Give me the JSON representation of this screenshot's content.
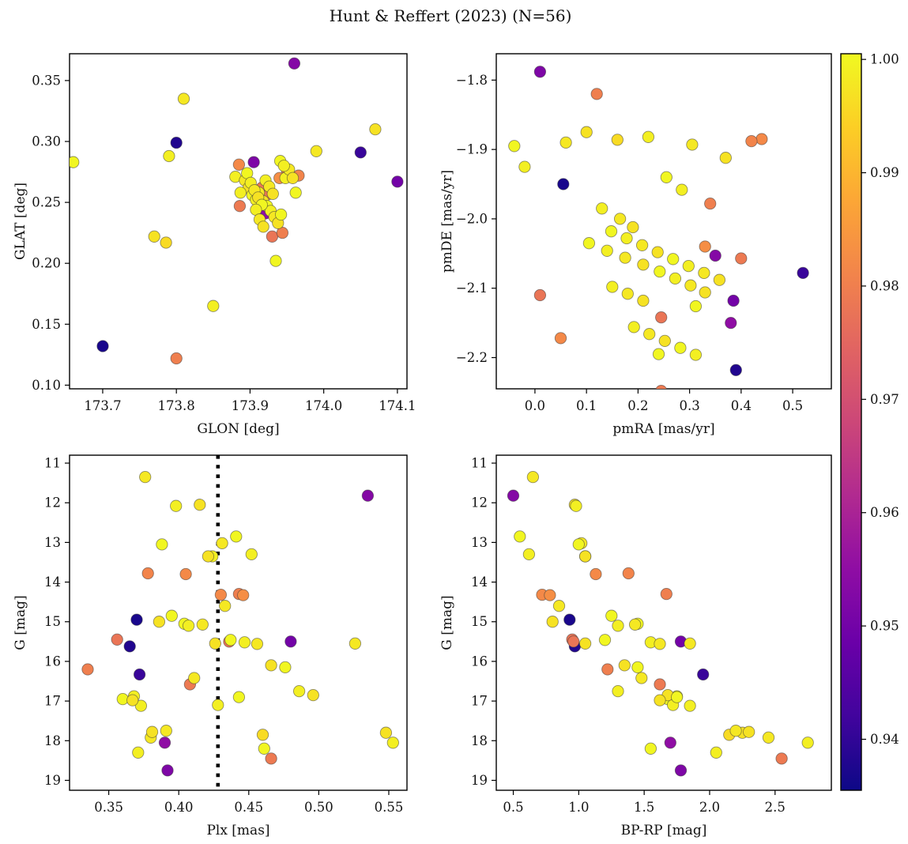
{
  "title": "Hunt & Reffert (2023) (N=56)",
  "chart_data": {
    "type": "scatter",
    "title": "Hunt & Reffert (2023) (N=56)",
    "n_points": 56,
    "colormap": "plasma",
    "colormap_stops": [
      "#0d0887",
      "#41049d",
      "#6a00a8",
      "#8f0da4",
      "#b12a90",
      "#cc4778",
      "#e16462",
      "#f2844b",
      "#fca636",
      "#fcce25",
      "#f0f921"
    ],
    "colorbar": {
      "vmin": 0.9355,
      "vmax": 1.0005,
      "tick_values": [
        1.0,
        0.99,
        0.98,
        0.97,
        0.96,
        0.95,
        0.94
      ],
      "tick_labels": [
        "1.00",
        "0.99",
        "0.98",
        "0.97",
        "0.96",
        "0.95",
        "0.94"
      ]
    },
    "columns": [
      "glon",
      "glat",
      "pmra",
      "pmde",
      "plx",
      "g",
      "bprp",
      "membership_prob"
    ],
    "stars": [
      [
        173.7,
        0.132,
        0.055,
        -1.95,
        0.37,
        14.95,
        0.93,
        0.937
      ],
      [
        173.8,
        0.299,
        0.39,
        -2.218,
        0.365,
        15.62,
        0.97,
        0.938
      ],
      [
        174.05,
        0.291,
        0.52,
        -2.078,
        0.372,
        16.33,
        1.95,
        0.941
      ],
      [
        173.96,
        0.364,
        0.35,
        -2.053,
        0.535,
        11.82,
        0.5,
        0.953
      ],
      [
        174.1,
        0.267,
        0.385,
        -2.118,
        0.48,
        15.5,
        1.78,
        0.95
      ],
      [
        173.921,
        0.241,
        0.38,
        -2.15,
        0.39,
        18.05,
        1.7,
        0.955
      ],
      [
        173.905,
        0.283,
        0.01,
        -1.788,
        0.392,
        18.75,
        1.78,
        0.952
      ],
      [
        173.8,
        0.122,
        0.12,
        -1.82,
        0.335,
        16.2,
        1.22,
        0.98
      ],
      [
        173.95,
        0.277,
        0.44,
        -1.885,
        0.405,
        13.8,
        1.13,
        0.982
      ],
      [
        173.966,
        0.272,
        0.42,
        -1.888,
        0.378,
        13.78,
        1.38,
        0.981
      ],
      [
        173.93,
        0.222,
        0.01,
        -2.11,
        0.356,
        15.45,
        0.95,
        0.978
      ],
      [
        173.885,
        0.281,
        0.05,
        -2.172,
        0.43,
        14.32,
        0.72,
        0.982
      ],
      [
        173.944,
        0.225,
        0.34,
        -1.978,
        0.443,
        14.3,
        1.67,
        0.98
      ],
      [
        173.886,
        0.247,
        0.4,
        -2.057,
        0.466,
        18.45,
        2.55,
        0.979
      ],
      [
        173.916,
        0.262,
        0.245,
        -2.248,
        0.408,
        16.58,
        1.62,
        0.979
      ],
      [
        173.926,
        0.257,
        0.245,
        -2.142,
        0.436,
        15.5,
        0.96,
        0.978
      ],
      [
        173.94,
        0.27,
        0.33,
        -2.04,
        0.446,
        14.33,
        0.78,
        0.983
      ],
      [
        173.66,
        0.283,
        -0.04,
        -1.895,
        0.36,
        16.95,
        1.68,
        1.0
      ],
      [
        173.79,
        0.288,
        -0.02,
        -1.925,
        0.368,
        16.88,
        1.75,
        0.999
      ],
      [
        173.81,
        0.335,
        0.06,
        -1.89,
        0.376,
        11.35,
        0.65,
        0.998
      ],
      [
        173.77,
        0.222,
        0.1,
        -1.875,
        0.548,
        17.8,
        2.25,
        0.997
      ],
      [
        173.786,
        0.217,
        0.16,
        -1.886,
        0.46,
        17.85,
        2.15,
        0.996
      ],
      [
        173.85,
        0.165,
        0.22,
        -1.882,
        0.428,
        17.1,
        1.72,
        0.999
      ],
      [
        173.99,
        0.292,
        0.305,
        -1.893,
        0.38,
        17.92,
        2.45,
        0.998
      ],
      [
        174.07,
        0.31,
        0.37,
        -1.912,
        0.415,
        12.05,
        0.97,
        0.997
      ],
      [
        173.935,
        0.202,
        0.24,
        -2.195,
        0.404,
        15.05,
        1.45,
        1.0
      ],
      [
        173.88,
        0.271,
        0.13,
        -1.985,
        0.424,
        13.35,
        1.05,
        0.999
      ],
      [
        173.893,
        0.268,
        0.165,
        -2.0,
        0.433,
        14.6,
        0.85,
        0.998
      ],
      [
        173.898,
        0.262,
        0.19,
        -2.012,
        0.386,
        15.0,
        0.8,
        0.997
      ],
      [
        173.903,
        0.256,
        0.105,
        -2.035,
        0.395,
        14.85,
        1.25,
        1.0
      ],
      [
        173.908,
        0.252,
        0.14,
        -2.046,
        0.407,
        15.1,
        1.3,
        0.999
      ],
      [
        173.912,
        0.258,
        0.175,
        -2.056,
        0.417,
        15.07,
        1.43,
        0.998
      ],
      [
        173.918,
        0.251,
        0.21,
        -2.066,
        0.426,
        15.55,
        1.05,
        0.997
      ],
      [
        173.923,
        0.247,
        0.242,
        -2.076,
        0.437,
        15.46,
        1.2,
        1.0
      ],
      [
        173.928,
        0.243,
        0.272,
        -2.086,
        0.447,
        15.52,
        1.55,
        0.999
      ],
      [
        173.933,
        0.238,
        0.302,
        -2.096,
        0.456,
        15.56,
        1.62,
        0.998
      ],
      [
        173.938,
        0.233,
        0.33,
        -2.106,
        0.466,
        16.1,
        1.35,
        0.997
      ],
      [
        173.942,
        0.24,
        0.312,
        -2.126,
        0.476,
        16.15,
        1.45,
        1.0
      ],
      [
        173.948,
        0.27,
        0.192,
        -2.156,
        0.486,
        16.75,
        1.3,
        0.999
      ],
      [
        173.953,
        0.277,
        0.222,
        -2.166,
        0.526,
        15.55,
        1.85,
        0.998
      ],
      [
        173.958,
        0.27,
        0.252,
        -2.176,
        0.496,
        16.85,
        1.68,
        0.997
      ],
      [
        173.962,
        0.258,
        0.282,
        -2.186,
        0.443,
        16.9,
        1.75,
        1.0
      ],
      [
        173.887,
        0.258,
        0.312,
        -2.196,
        0.373,
        17.12,
        1.85,
        0.999
      ],
      [
        173.896,
        0.274,
        0.148,
        -2.018,
        0.441,
        12.85,
        0.55,
        1.0
      ],
      [
        173.901,
        0.266,
        0.178,
        -2.028,
        0.452,
        13.3,
        0.62,
        0.999
      ],
      [
        173.906,
        0.26,
        0.208,
        -2.038,
        0.431,
        13.02,
        1.02,
        0.998
      ],
      [
        173.911,
        0.254,
        0.238,
        -2.048,
        0.421,
        13.35,
        1.05,
        0.997
      ],
      [
        173.916,
        0.248,
        0.268,
        -2.058,
        0.461,
        18.2,
        1.55,
        1.0
      ],
      [
        173.921,
        0.268,
        0.298,
        -2.068,
        0.553,
        18.05,
        2.75,
        0.999
      ],
      [
        173.926,
        0.263,
        0.328,
        -2.078,
        0.391,
        17.75,
        2.2,
        0.998
      ],
      [
        173.931,
        0.257,
        0.358,
        -2.088,
        0.381,
        17.78,
        2.3,
        0.997
      ],
      [
        173.908,
        0.244,
        0.15,
        -2.098,
        0.371,
        18.3,
        2.05,
        0.999
      ],
      [
        173.913,
        0.236,
        0.18,
        -2.108,
        0.411,
        16.42,
        1.48,
        0.998
      ],
      [
        173.918,
        0.23,
        0.21,
        -2.118,
        0.367,
        16.98,
        1.62,
        0.997
      ],
      [
        173.941,
        0.284,
        0.255,
        -1.94,
        0.388,
        13.05,
        1.0,
        1.0
      ],
      [
        173.946,
        0.28,
        0.285,
        -1.958,
        0.398,
        12.08,
        0.98,
        0.999
      ]
    ],
    "panels": [
      {
        "id": "glon-glat",
        "xlabel": "GLON [deg]",
        "ylabel": "GLAT [deg]",
        "xi": 0,
        "yi": 1,
        "xlim": [
          173.655,
          174.113
        ],
        "ylim": [
          0.097,
          0.372
        ],
        "invert_y": false,
        "xticks": [
          173.7,
          173.8,
          173.9,
          174.0,
          174.1
        ],
        "xtick_labels": [
          "173.7",
          "173.8",
          "173.9",
          "174.0",
          "174.1"
        ],
        "yticks": [
          0.1,
          0.15,
          0.2,
          0.25,
          0.3,
          0.35
        ],
        "ytick_labels": [
          "0.10",
          "0.15",
          "0.20",
          "0.25",
          "0.30",
          "0.35"
        ]
      },
      {
        "id": "pmra-pmde",
        "xlabel": "pmRA [mas/yr]",
        "ylabel": "pmDE [mas/yr]",
        "xi": 2,
        "yi": 3,
        "xlim": [
          -0.075,
          0.575
        ],
        "ylim": [
          -2.245,
          -1.762
        ],
        "invert_y": false,
        "xticks": [
          0.0,
          0.1,
          0.2,
          0.3,
          0.4,
          0.5
        ],
        "xtick_labels": [
          "0.0",
          "0.1",
          "0.2",
          "0.3",
          "0.4",
          "0.5"
        ],
        "yticks": [
          -2.2,
          -2.1,
          -2.0,
          -1.9,
          -1.8
        ],
        "ytick_labels": [
          "−2.2",
          "−2.1",
          "−2.0",
          "−1.9",
          "−1.8"
        ]
      },
      {
        "id": "plx-g",
        "xlabel": "Plx [mas]",
        "ylabel": "G [mag]",
        "xi": 4,
        "yi": 5,
        "xlim": [
          0.322,
          0.563
        ],
        "ylim": [
          10.8,
          19.25
        ],
        "invert_y": true,
        "xticks": [
          0.35,
          0.4,
          0.45,
          0.5,
          0.55
        ],
        "xtick_labels": [
          "0.35",
          "0.40",
          "0.45",
          "0.50",
          "0.55"
        ],
        "yticks": [
          11,
          12,
          13,
          14,
          15,
          16,
          17,
          18,
          19
        ],
        "ytick_labels": [
          "11",
          "12",
          "13",
          "14",
          "15",
          "16",
          "17",
          "18",
          "19"
        ],
        "vline_x": 0.428
      },
      {
        "id": "bprp-g",
        "xlabel": "BP-RP [mag]",
        "ylabel": "G [mag]",
        "xi": 6,
        "yi": 5,
        "xlim": [
          0.37,
          2.93
        ],
        "ylim": [
          10.8,
          19.25
        ],
        "invert_y": true,
        "xticks": [
          0.5,
          1.0,
          1.5,
          2.0,
          2.5
        ],
        "xtick_labels": [
          "0.5",
          "1.0",
          "1.5",
          "2.0",
          "2.5"
        ],
        "yticks": [
          11,
          12,
          13,
          14,
          15,
          16,
          17,
          18,
          19
        ],
        "ytick_labels": [
          "11",
          "12",
          "13",
          "14",
          "15",
          "16",
          "17",
          "18",
          "19"
        ]
      }
    ]
  }
}
